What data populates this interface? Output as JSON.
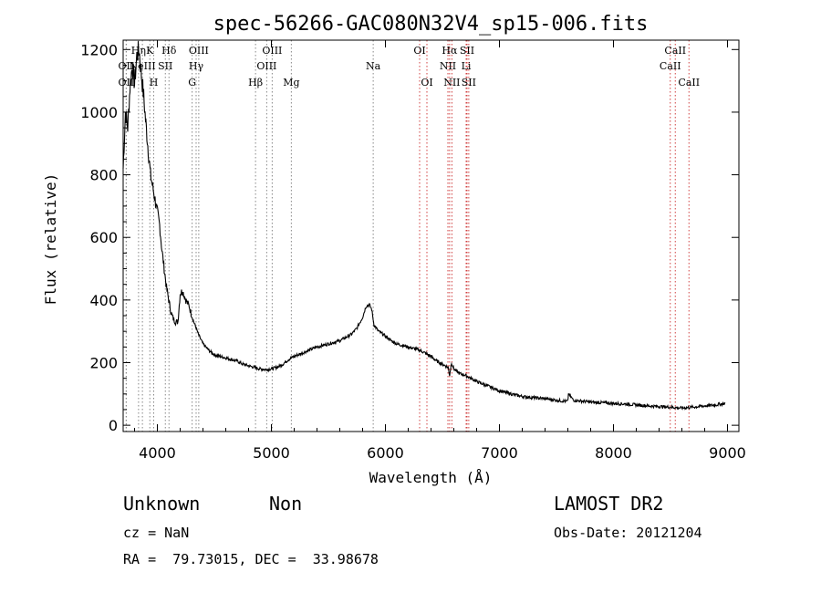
{
  "chart_data": {
    "type": "line",
    "title": "spec-56266-GAC080N32V4_sp15-006.fits",
    "xlabel": "Wavelength (Å)",
    "ylabel": "Flux (relative)",
    "xlim": [
      3700,
      9100
    ],
    "ylim": [
      -20,
      1230
    ],
    "xticks": [
      4000,
      5000,
      6000,
      7000,
      8000,
      9000
    ],
    "yticks": [
      0,
      200,
      400,
      600,
      800,
      1000,
      1200
    ],
    "grid": false,
    "series": [
      {
        "x": [
          3700,
          3720,
          3740,
          3760,
          3780,
          3800,
          3820,
          3840,
          3860,
          3880,
          3900,
          3920,
          3940,
          3960,
          3980,
          4000,
          4020,
          4040,
          4060,
          4080,
          4100,
          4120,
          4140,
          4160,
          4180,
          4200,
          4220,
          4250,
          4280,
          4300,
          4330,
          4360,
          4400,
          4450,
          4500,
          4550,
          4600,
          4650,
          4700,
          4750,
          4800,
          4850,
          4900,
          4950,
          5000,
          5050,
          5100,
          5150,
          5200,
          5300,
          5400,
          5500,
          5600,
          5700,
          5750,
          5800,
          5830,
          5860,
          5880,
          5900,
          5920,
          5940,
          5960,
          6000,
          6050,
          6100,
          6150,
          6200,
          6250,
          6300,
          6350,
          6400,
          6450,
          6500,
          6550,
          6563,
          6580,
          6600,
          6650,
          6700,
          6750,
          6800,
          6900,
          7000,
          7100,
          7200,
          7300,
          7400,
          7500,
          7600,
          7605,
          7650,
          7700,
          7800,
          7900,
          8000,
          8100,
          8200,
          8300,
          8400,
          8500,
          8600,
          8700,
          8800,
          8900,
          8980
        ],
        "y": [
          820,
          1000,
          950,
          1080,
          1150,
          1090,
          1180,
          1200,
          1120,
          1050,
          960,
          880,
          800,
          760,
          720,
          680,
          640,
          560,
          500,
          440,
          400,
          360,
          340,
          330,
          330,
          420,
          430,
          400,
          380,
          350,
          320,
          290,
          260,
          240,
          225,
          220,
          215,
          210,
          205,
          195,
          190,
          185,
          180,
          178,
          180,
          185,
          195,
          210,
          220,
          235,
          250,
          260,
          270,
          290,
          310,
          345,
          380,
          385,
          370,
          320,
          310,
          300,
          295,
          285,
          270,
          260,
          255,
          250,
          245,
          240,
          230,
          220,
          205,
          195,
          185,
          160,
          200,
          180,
          165,
          160,
          150,
          140,
          125,
          110,
          100,
          92,
          88,
          85,
          80,
          76,
          100,
          80,
          78,
          74,
          72,
          70,
          68,
          65,
          62,
          60,
          58,
          55,
          58,
          62,
          65,
          70
        ]
      }
    ],
    "emission_lines": [
      {
        "label": "OII",
        "wavelength": 3727,
        "row": 3
      },
      {
        "label": "Hη",
        "wavelength": 3835,
        "row": 1
      },
      {
        "label": "OII",
        "wavelength": 3727,
        "row": 2
      },
      {
        "label": "K",
        "wavelength": 3934,
        "row": 1
      },
      {
        "label": "H",
        "wavelength": 3968,
        "row": 3
      },
      {
        "label": "NeIII",
        "wavelength": 3869,
        "row": 2
      },
      {
        "label": "SII",
        "wavelength": 4070,
        "row": 2
      },
      {
        "label": "Hδ",
        "wavelength": 4102,
        "row": 1
      },
      {
        "label": "OIII",
        "wavelength": 4363,
        "row": 1
      },
      {
        "label": "Hγ",
        "wavelength": 4340,
        "row": 2
      },
      {
        "label": "G",
        "wavelength": 4305,
        "row": 3
      },
      {
        "label": "Hβ",
        "wavelength": 4861,
        "row": 3
      },
      {
        "label": "OIII",
        "wavelength": 4959,
        "row": 2
      },
      {
        "label": "OIII",
        "wavelength": 5007,
        "row": 1
      },
      {
        "label": "Mg",
        "wavelength": 5175,
        "row": 3
      },
      {
        "label": "Na",
        "wavelength": 5893,
        "row": 2
      },
      {
        "label": "OI",
        "wavelength": 6300,
        "row": 1
      },
      {
        "label": "OI",
        "wavelength": 6364,
        "row": 3
      },
      {
        "label": "Hα",
        "wavelength": 6563,
        "row": 1
      },
      {
        "label": "NII",
        "wavelength": 6548,
        "row": 2
      },
      {
        "label": "NII",
        "wavelength": 6583,
        "row": 3
      },
      {
        "label": "SII",
        "wavelength": 6716,
        "row": 1
      },
      {
        "label": "Li",
        "wavelength": 6708,
        "row": 2
      },
      {
        "label": "SII",
        "wavelength": 6731,
        "row": 3
      },
      {
        "label": "CaII",
        "wavelength": 8498,
        "row": 2
      },
      {
        "label": "CaII",
        "wavelength": 8542,
        "row": 1
      },
      {
        "label": "CaII",
        "wavelength": 8662,
        "row": 3
      }
    ],
    "line_colors": {
      "blue_dotted": "#888888",
      "red_dotted": "#d04040"
    }
  },
  "info": {
    "classification": "Unknown",
    "subclass": "Non",
    "survey": "LAMOST DR2",
    "cz": "cz = NaN",
    "obs_date": "Obs-Date: 20121204",
    "coords": "RA =  79.73015, DEC =  33.98678"
  }
}
